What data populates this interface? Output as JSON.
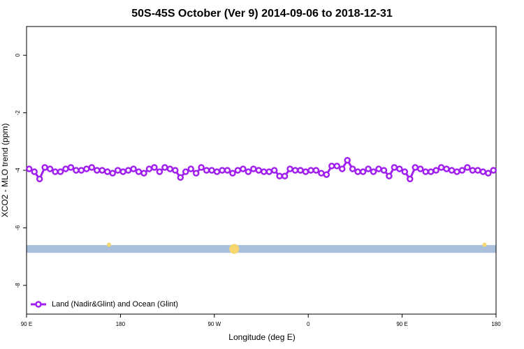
{
  "chart_data": {
    "type": "line",
    "title": "50S-45S October (Ver 9)   2014-09-06 to 2018-12-31",
    "x_label": "Longitude (deg E)",
    "y_label": "XCO2 - MLO trend (ppm)",
    "xlim": [
      90,
      540
    ],
    "ylim": [
      -9,
      1
    ],
    "xticks": [
      {
        "value": 90,
        "label": "90 E"
      },
      180,
      {
        "value": 270,
        "label": "90 W"
      },
      {
        "value": 360,
        "label": "0"
      },
      {
        "value": 450,
        "label": "90 E"
      },
      {
        "value": 540,
        "label": "180"
      }
    ],
    "yticks": [
      -8,
      -6,
      -4,
      -2,
      0
    ],
    "legend_position": "bottom-left",
    "x": [
      92.5,
      97.5,
      102.5,
      107.5,
      112.5,
      117.5,
      122.5,
      127.5,
      132.5,
      137.5,
      142.5,
      147.5,
      152.5,
      157.5,
      162.5,
      167.5,
      172.5,
      177.5,
      182.5,
      187.5,
      192.5,
      197.5,
      202.5,
      207.5,
      212.5,
      217.5,
      222.5,
      227.5,
      232.5,
      237.5,
      242.5,
      247.5,
      252.5,
      257.5,
      262.5,
      267.5,
      272.5,
      277.5,
      282.5,
      287.5,
      292.5,
      297.5,
      302.5,
      307.5,
      312.5,
      317.5,
      322.5,
      327.5,
      332.5,
      337.5,
      342.5,
      347.5,
      352.5,
      357.5,
      362.5,
      367.5,
      372.5,
      377.5,
      382.5,
      387.5,
      392.5,
      397.5,
      402.5,
      407.5,
      412.5,
      417.5,
      422.5,
      427.5,
      432.5,
      437.5,
      442.5,
      447.5,
      452.5,
      457.5,
      462.5,
      467.5,
      472.5,
      477.5,
      482.5,
      487.5,
      492.5,
      497.5,
      502.5,
      507.5,
      512.5,
      517.5,
      522.5,
      527.5,
      532.5,
      537.5
    ],
    "series": [
      {
        "name": "Land (Nadir&Glint) and Ocean (Glint)",
        "color": "#a020f0",
        "values": [
          -3.95,
          -4.05,
          -4.3,
          -3.9,
          -3.95,
          -4.05,
          -4.05,
          -3.95,
          -3.9,
          -4.0,
          -4.0,
          -3.95,
          -3.9,
          -4.0,
          -4.0,
          -4.05,
          -4.1,
          -4.0,
          -4.05,
          -4.0,
          -3.95,
          -4.05,
          -4.1,
          -3.95,
          -3.9,
          -4.05,
          -3.9,
          -3.95,
          -4.0,
          -4.25,
          -4.05,
          -3.95,
          -4.1,
          -3.9,
          -4.0,
          -4.0,
          -4.05,
          -4.0,
          -4.0,
          -4.1,
          -4.0,
          -3.95,
          -4.05,
          -3.95,
          -4.0,
          -4.05,
          -4.05,
          -4.0,
          -4.2,
          -4.2,
          -3.95,
          -4.0,
          -4.0,
          -4.05,
          -4.0,
          -4.0,
          -4.1,
          -4.15,
          -3.85,
          -3.85,
          -3.95,
          -3.65,
          -3.95,
          -4.05,
          -4.05,
          -3.95,
          -4.05,
          -3.95,
          -4.0,
          -4.2,
          -3.9,
          -3.95,
          -4.05,
          -4.3,
          -3.9,
          -3.95,
          -4.05,
          -4.05,
          -4.0,
          -3.9,
          -3.95,
          -4.0,
          -4.05,
          -4.0,
          -3.9,
          -4.0,
          -4.0,
          -4.05,
          -4.1,
          -4.0
        ]
      }
    ],
    "surface_band": {
      "ylim": [
        -6.87,
        -6.6
      ],
      "color": "#a9bfdc",
      "marker_color": "#f5d76e",
      "markers_x": [
        169,
        289,
        529
      ],
      "marker_sizes": [
        3,
        7,
        3
      ]
    }
  }
}
